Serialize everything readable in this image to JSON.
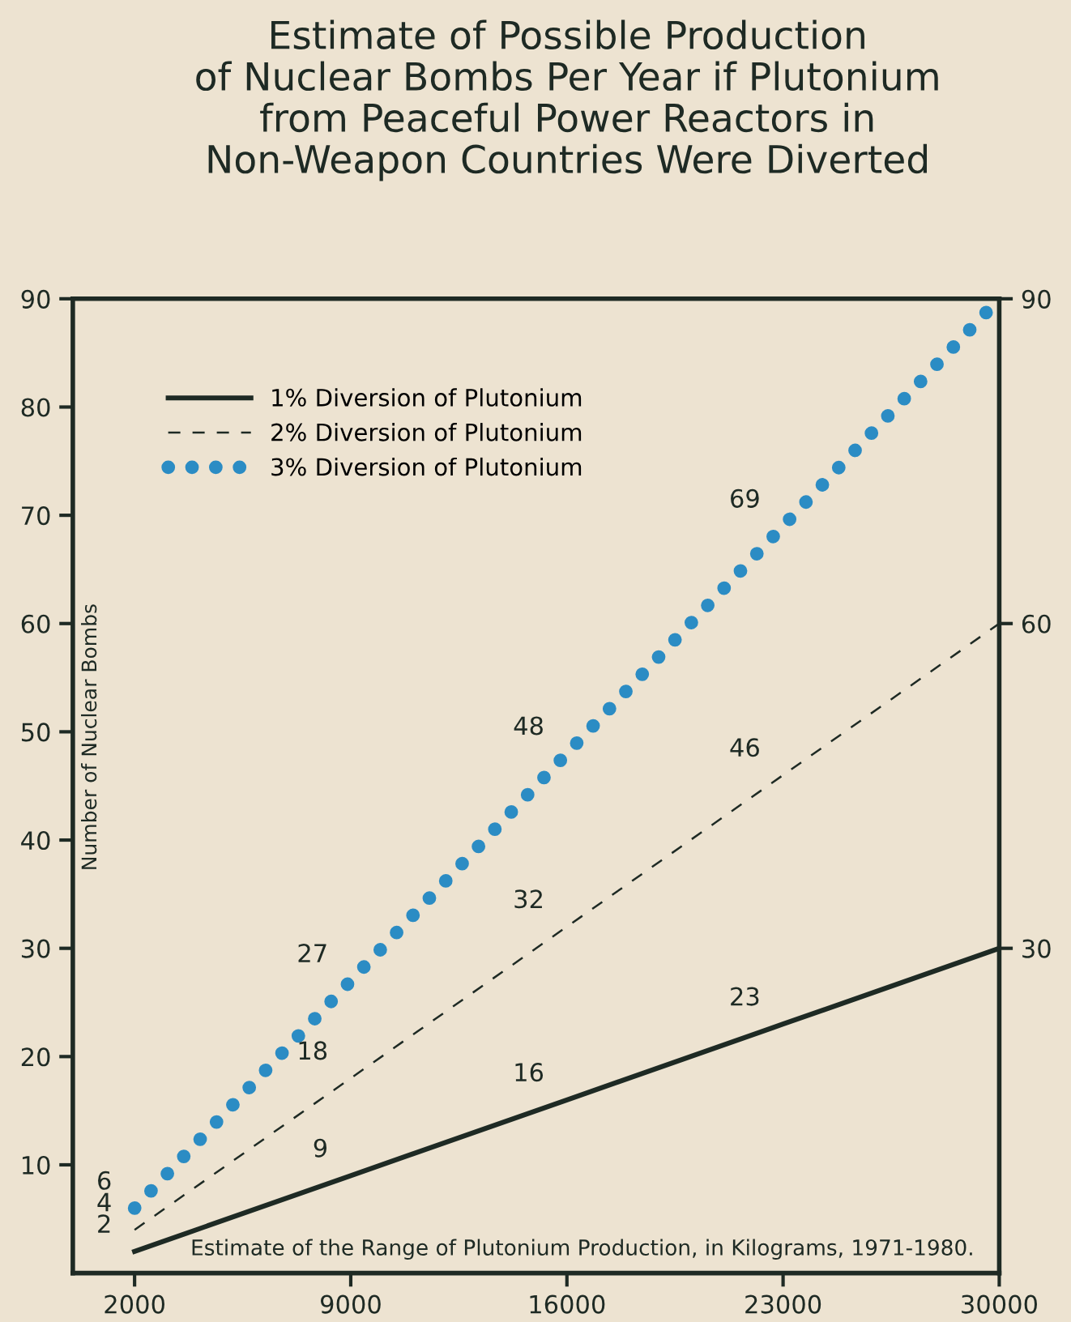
{
  "chart_data": {
    "type": "line",
    "title": "Estimate of Possible Production\nof Nuclear Bombs Per Year if Plutonium\nfrom Peaceful Power Reactors in\nNon-Weapon Countries Were Diverted",
    "xlabel": "Estimate of the Range of Plutonium Production, in Kilograms, 1971-1980.",
    "ylabel": "Number of Nuclear Bombs",
    "x": [
      2000,
      9000,
      16000,
      23000,
      30000
    ],
    "series": [
      {
        "name": "1% Diversion of Plutonium",
        "color": "#1e2a24",
        "line_style": "solid",
        "values": [
          2,
          9,
          16,
          23,
          30
        ],
        "value_labels": [
          "2",
          "9",
          "16",
          "23",
          null
        ]
      },
      {
        "name": "2% Diversion of Plutonium",
        "color": "#1e2a24",
        "line_style": "dashed",
        "values": [
          4,
          18,
          32,
          46,
          60
        ],
        "value_labels": [
          "4",
          "18",
          "32",
          "46",
          null
        ]
      },
      {
        "name": "3% Diversion of Plutonium",
        "color": "#2b8cc4",
        "line_style": "dotted",
        "values": [
          6,
          27,
          48,
          69,
          90
        ],
        "value_labels": [
          "6",
          "27",
          "48",
          "69",
          null
        ]
      }
    ],
    "xlim": [
      0,
      30000
    ],
    "xticks": [
      2000,
      9000,
      16000,
      23000,
      30000
    ],
    "ylim": [
      0,
      90
    ],
    "yticks": [
      10,
      20,
      30,
      40,
      50,
      60,
      70,
      80,
      90
    ],
    "y2lim": [
      0,
      90
    ],
    "y2ticks": [
      30,
      60,
      90
    ],
    "grid": false,
    "legend": "top left"
  }
}
